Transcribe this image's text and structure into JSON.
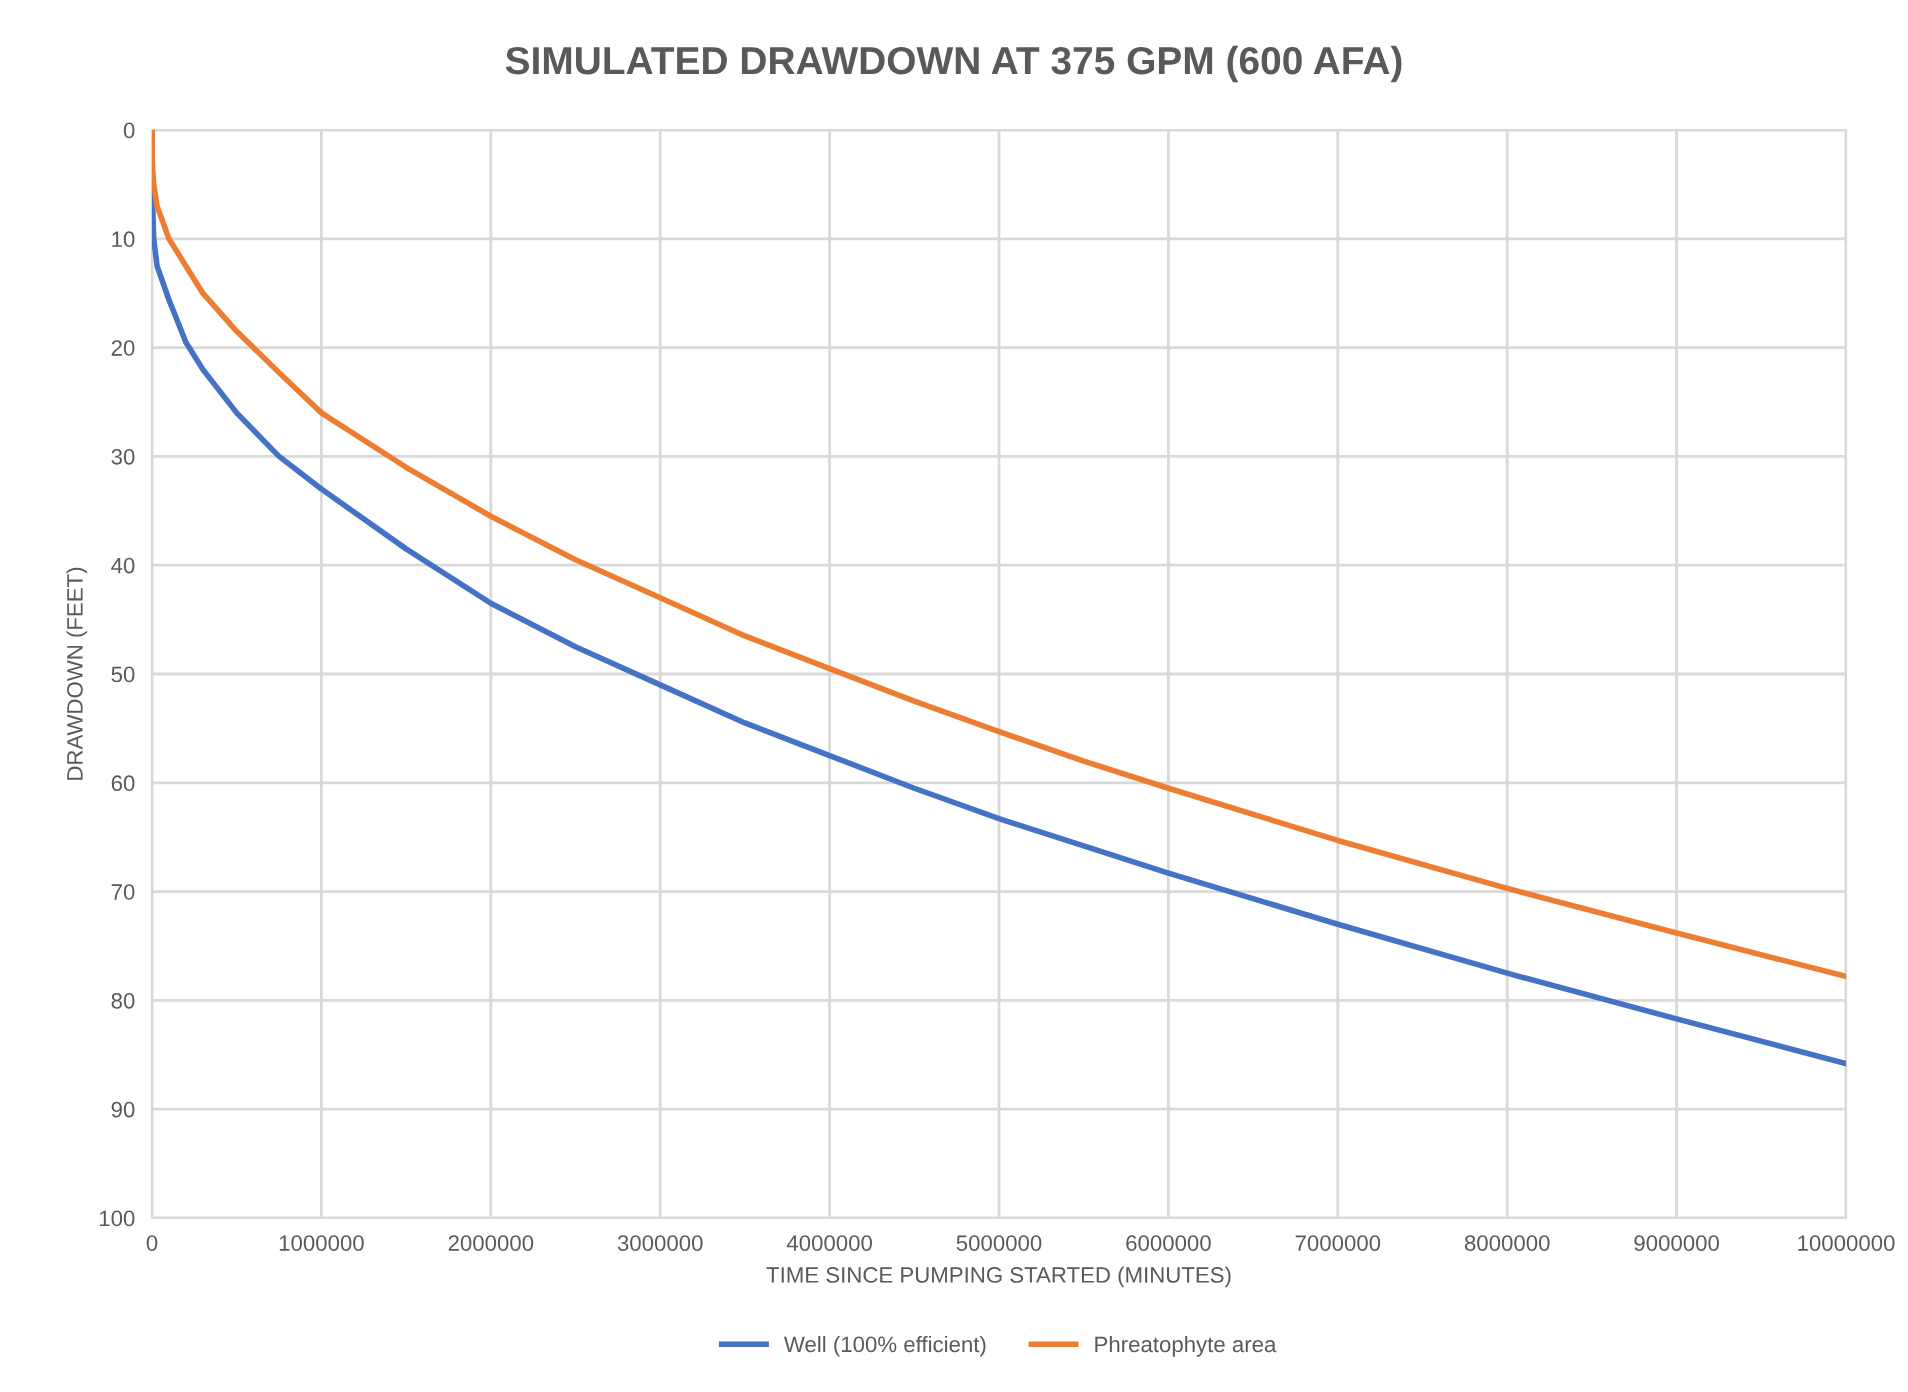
{
  "chart_data": {
    "type": "line",
    "title": "SIMULATED DRAWDOWN AT 375 GPM (600 AFA)",
    "xlabel": "TIME SINCE PUMPING STARTED (MINUTES)",
    "ylabel": "DRAWDOWN (FEET)",
    "series": [
      {
        "name": "Well (100% efficient)",
        "color": "#4472c4",
        "x": [
          0,
          2000,
          10000,
          30000,
          100000,
          200000,
          300000,
          500000,
          750000,
          1000000,
          1500000,
          2000000,
          2500000,
          3000000,
          3500000,
          4000000,
          4500000,
          5000000,
          5500000,
          6000000,
          7000000,
          8000000,
          9000000,
          10000000
        ],
        "values": [
          0,
          6,
          10,
          12.5,
          15.6,
          19.5,
          22,
          26,
          30,
          33,
          38.5,
          43.5,
          47.5,
          51,
          54.5,
          57.5,
          60.5,
          63.3,
          65.8,
          68.3,
          73,
          77.5,
          81.7,
          85.8
        ]
      },
      {
        "name": "Phreatophyte area",
        "color": "#ed7d31",
        "x": [
          0,
          2000,
          10000,
          30000,
          100000,
          200000,
          300000,
          500000,
          750000,
          1000000,
          1500000,
          2000000,
          2500000,
          3000000,
          3500000,
          4000000,
          4500000,
          5000000,
          5500000,
          6000000,
          7000000,
          8000000,
          9000000,
          10000000
        ],
        "values": [
          0,
          3,
          5,
          7,
          10,
          12.5,
          15,
          18.5,
          22.3,
          26,
          31,
          35.5,
          39.5,
          43,
          46.5,
          49.5,
          52.5,
          55.3,
          58,
          60.5,
          65.3,
          69.7,
          73.8,
          77.8
        ]
      }
    ],
    "xlim": [
      0,
      10000000
    ],
    "xticks": [
      0,
      1000000,
      2000000,
      3000000,
      4000000,
      5000000,
      6000000,
      7000000,
      8000000,
      9000000,
      10000000
    ],
    "ylim": [
      100,
      0
    ],
    "yticks": [
      0,
      10,
      20,
      30,
      40,
      50,
      60,
      70,
      80,
      90,
      100
    ],
    "grid": true,
    "legend": "bottom",
    "marker": "none",
    "line_style": "solid"
  }
}
